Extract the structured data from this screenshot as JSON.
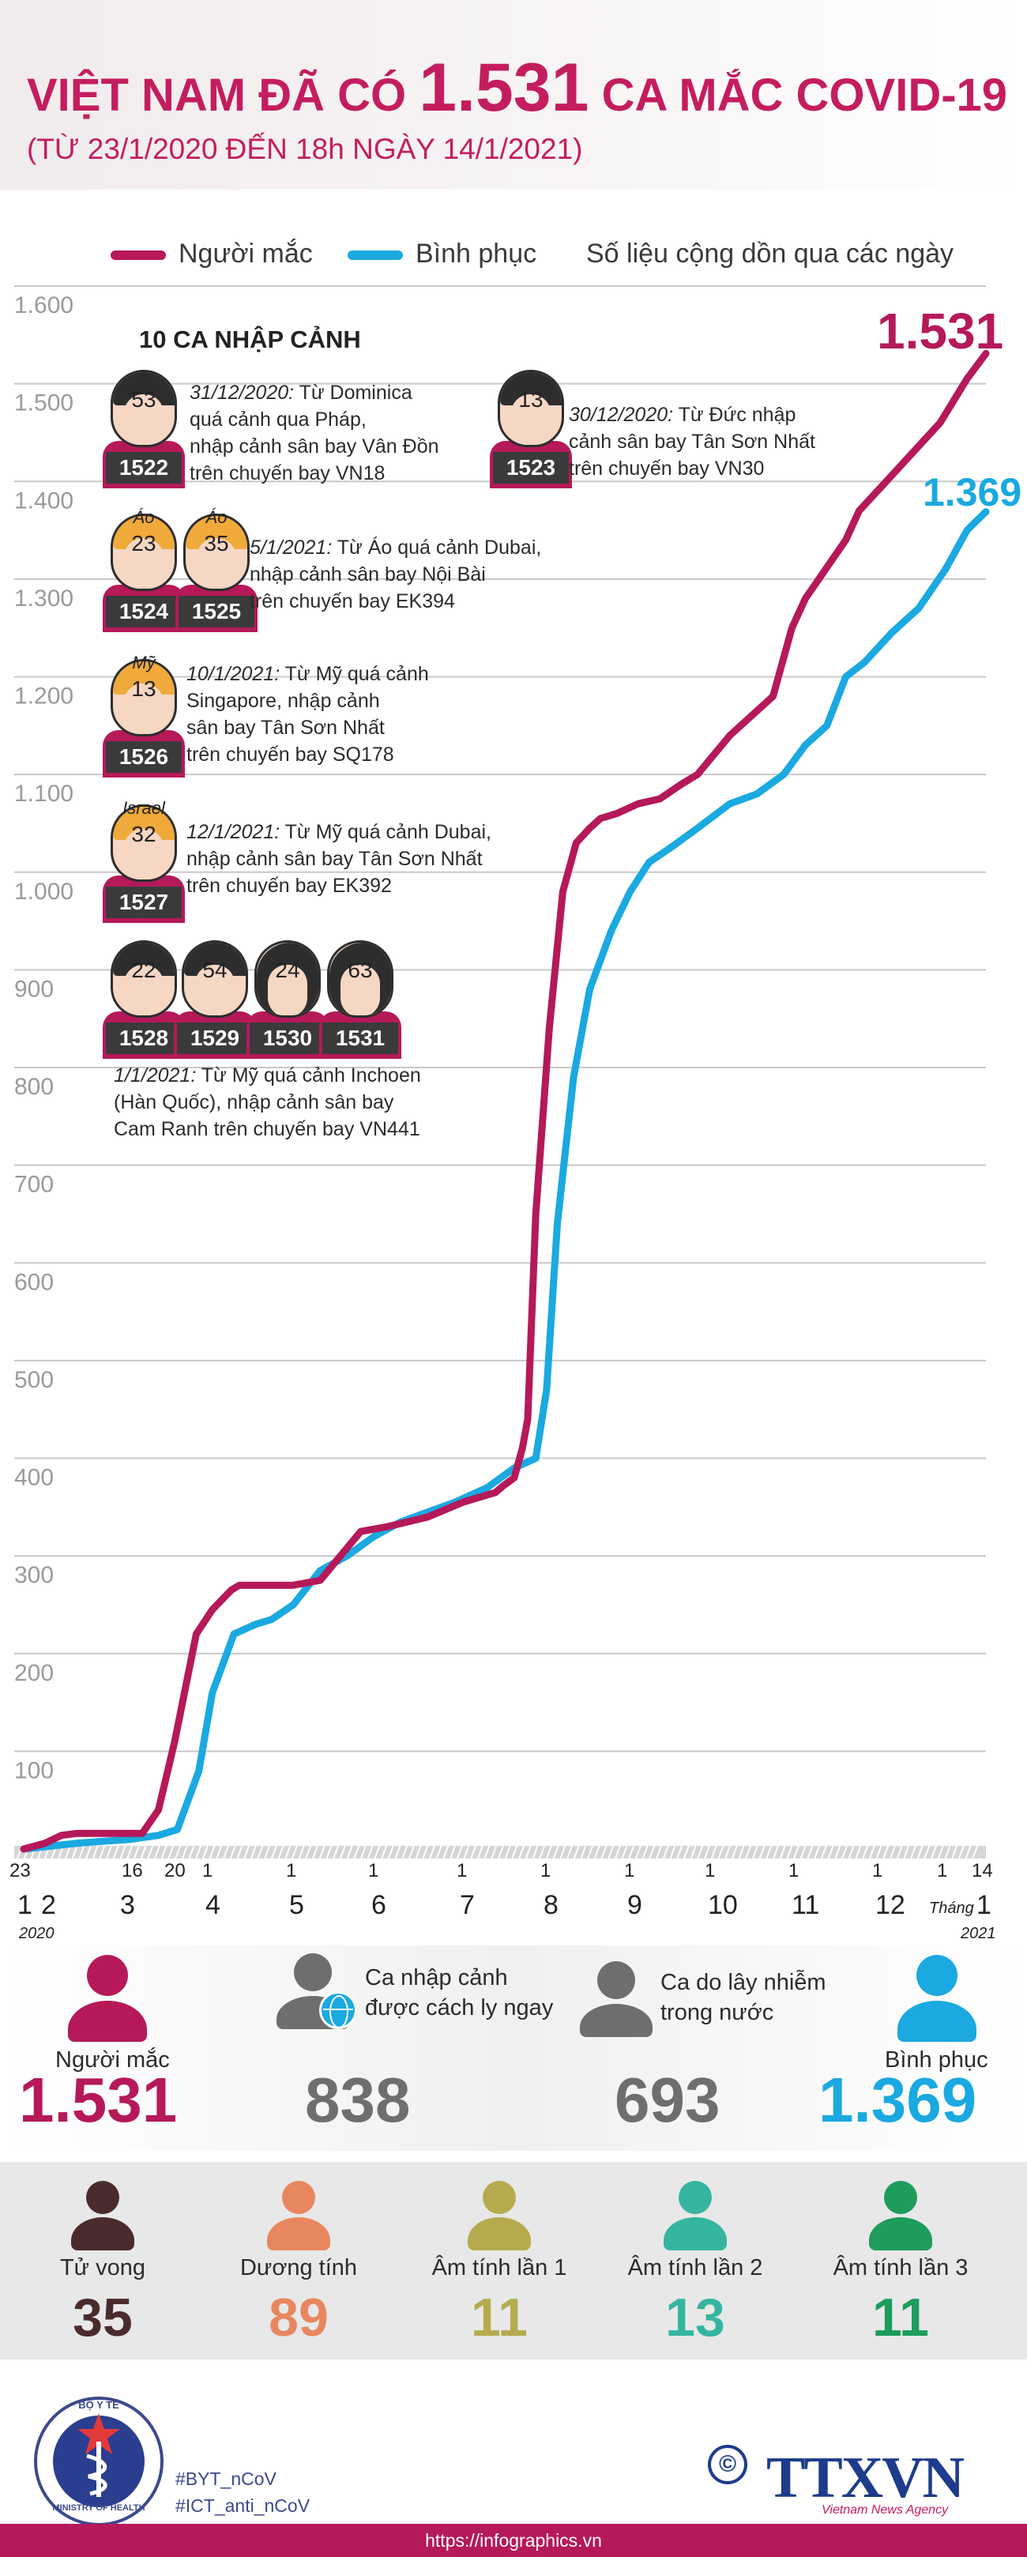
{
  "header": {
    "title_prefix": "VIỆT NAM ĐÃ CÓ",
    "title_number": "1.531",
    "title_suffix": "CA MẮC COVID-19",
    "subtitle": "(TỪ 23/1/2020 ĐẾN 18h NGÀY 14/1/2021)"
  },
  "legend": {
    "infected": "Người mắc",
    "recovered": "Bình phục",
    "note": "Số liệu cộng dồn qua các ngày"
  },
  "colors": {
    "infected": "#b5195a",
    "recovered": "#1aa9e0",
    "deaths": "#4a2b2b",
    "positive": "#e8875f",
    "neg1": "#b5ab4e",
    "neg2": "#35b5a0",
    "neg3": "#1d9c5c",
    "gray": "#6e6e6e"
  },
  "chart_data": {
    "type": "line",
    "title": "Số liệu cộng dồn qua các ngày",
    "ylim": [
      0,
      1600
    ],
    "yticks": [
      "1.600",
      "1.500",
      "1.400",
      "1.300",
      "1.200",
      "1.100",
      "1.000",
      "900",
      "800",
      "700",
      "600",
      "500",
      "400",
      "300",
      "200",
      "100"
    ],
    "x_unit": "day index from 23/1/2020 (0) to 14/1/2021 (357)",
    "xlim": [
      0,
      357
    ],
    "end_labels": {
      "infected": "1.531",
      "recovered": "1.369"
    },
    "series": [
      {
        "name": "Người mắc",
        "color": "#b5195a",
        "x": [
          0,
          8,
          14,
          20,
          30,
          37,
          44,
          50,
          56,
          64,
          70,
          77,
          80,
          84,
          90,
          100,
          110,
          125,
          135,
          150,
          163,
          175,
          178,
          182,
          185,
          187,
          190,
          195,
          200,
          205,
          210,
          214,
          220,
          228,
          236,
          244,
          250,
          262,
          278,
          285,
          290,
          305,
          310,
          320,
          330,
          340,
          350,
          357
        ],
        "y": [
          0,
          6,
          14,
          16,
          16,
          16,
          16,
          40,
          110,
          220,
          245,
          265,
          270,
          270,
          270,
          270,
          275,
          325,
          330,
          340,
          355,
          365,
          372,
          380,
          410,
          440,
          650,
          840,
          980,
          1030,
          1045,
          1055,
          1060,
          1070,
          1075,
          1090,
          1100,
          1140,
          1180,
          1250,
          1280,
          1340,
          1370,
          1400,
          1430,
          1460,
          1505,
          1531
        ]
      },
      {
        "name": "Bình phục",
        "color": "#1aa9e0",
        "x": [
          0,
          20,
          40,
          50,
          57,
          65,
          70,
          78,
          86,
          92,
          100,
          110,
          120,
          130,
          140,
          150,
          160,
          172,
          182,
          190,
          194,
          198,
          204,
          210,
          218,
          225,
          232,
          240,
          250,
          262,
          272,
          282,
          290,
          298,
          305,
          312,
          322,
          332,
          342,
          350,
          357
        ],
        "y": [
          0,
          6,
          10,
          14,
          20,
          80,
          160,
          220,
          230,
          235,
          250,
          285,
          300,
          320,
          335,
          345,
          355,
          370,
          390,
          400,
          470,
          640,
          790,
          880,
          940,
          980,
          1010,
          1025,
          1045,
          1070,
          1080,
          1100,
          1130,
          1150,
          1200,
          1215,
          1245,
          1270,
          1310,
          1350,
          1369
        ]
      }
    ],
    "x_tick_days": [
      {
        "day": "23",
        "month": "1",
        "year": "2020"
      },
      {
        "day": "",
        "month": "2",
        "year": ""
      },
      {
        "day": "16",
        "month": "",
        "year": ""
      },
      {
        "day": "20",
        "month": "3",
        "year": ""
      },
      {
        "day": "1",
        "month": "4",
        "year": ""
      },
      {
        "day": "1",
        "month": "5",
        "year": ""
      },
      {
        "day": "1",
        "month": "6",
        "year": ""
      },
      {
        "day": "1",
        "month": "7",
        "year": ""
      },
      {
        "day": "1",
        "month": "8",
        "year": ""
      },
      {
        "day": "1",
        "month": "9",
        "year": ""
      },
      {
        "day": "1",
        "month": "10",
        "year": ""
      },
      {
        "day": "1",
        "month": "11",
        "year": ""
      },
      {
        "day": "1",
        "month": "12",
        "year": ""
      },
      {
        "day": "1",
        "month": "",
        "year": ""
      },
      {
        "day": "14",
        "month": "1",
        "year": "2021"
      }
    ],
    "month_word": "Tháng"
  },
  "imported": {
    "title": "10 CA NHẬP CẢNH",
    "people": [
      {
        "id": "1522",
        "age": "53",
        "tag": ""
      },
      {
        "id": "1523",
        "age": "13",
        "tag": ""
      },
      {
        "id": "1524",
        "age": "23",
        "tag": "Áo"
      },
      {
        "id": "1525",
        "age": "35",
        "tag": "Áo"
      },
      {
        "id": "1526",
        "age": "13",
        "tag": "Mỹ"
      },
      {
        "id": "1527",
        "age": "32",
        "tag": "Israel"
      },
      {
        "id": "1528",
        "age": "22",
        "tag": ""
      },
      {
        "id": "1529",
        "age": "54",
        "tag": ""
      },
      {
        "id": "1530",
        "age": "24",
        "tag": ""
      },
      {
        "id": "1531",
        "age": "63",
        "tag": ""
      }
    ],
    "notes": [
      {
        "date": "31/12/2020:",
        "text_1": " Từ Dominica",
        "text_2": "quá cảnh qua Pháp,",
        "text_3": "nhập cảnh sân bay Vân Đồn",
        "text_4": "trên chuyến bay VN18"
      },
      {
        "date": "30/12/2020:",
        "text_1": " Từ Đức nhập",
        "text_2": "cảnh sân bay Tân Sơn Nhất",
        "text_3": "trên chuyến bay VN30",
        "text_4": ""
      },
      {
        "date": "5/1/2021:",
        "text_1": " Từ Áo quá cảnh Dubai,",
        "text_2": "nhập cảnh sân bay Nội Bài",
        "text_3": "trên chuyến bay EK394",
        "text_4": ""
      },
      {
        "date": "10/1/2021:",
        "text_1": " Từ Mỹ quá cảnh",
        "text_2": "Singapore, nhập cảnh",
        "text_3": "sân bay Tân Sơn Nhất",
        "text_4": "trên chuyến bay SQ178"
      },
      {
        "date": "12/1/2021:",
        "text_1": " Từ Mỹ quá cảnh Dubai,",
        "text_2": "nhập cảnh sân bay Tân Sơn Nhất",
        "text_3": "trên chuyến bay EK392",
        "text_4": ""
      },
      {
        "date": "1/1/2021:",
        "text_1": " Từ Mỹ quá cảnh Inchoen",
        "text_2": "(Hàn Quốc), nhập cảnh sân bay",
        "text_3": "Cam Ranh trên chuyến bay VN441",
        "text_4": ""
      }
    ]
  },
  "summary": {
    "infected": {
      "label": "Người mắc",
      "value": "1.531"
    },
    "imported": {
      "label_1": "Ca nhập cảnh",
      "label_2": "được cách ly ngay",
      "value": "838"
    },
    "local": {
      "label_1": "Ca do lây nhiễm",
      "label_2": "trong nước",
      "value": "693"
    },
    "recovered": {
      "label": "Bình phục",
      "value": "1.369"
    }
  },
  "outcome": [
    {
      "label": "Tử vong",
      "value": "35"
    },
    {
      "label": "Dương tính",
      "value": "89"
    },
    {
      "label": "Âm tính lần 1",
      "value": "11"
    },
    {
      "label": "Âm tính lần 2",
      "value": "13"
    },
    {
      "label": "Âm tính lần 3",
      "value": "11"
    }
  ],
  "footer": {
    "ministry_text_top": "BỘ Y TẾ",
    "ministry_text_bottom": "MINISTRY OF HEALTH",
    "tag_1": "#BYT_nCoV",
    "tag_2": "#ICT_anti_nCoV",
    "copyright": "©",
    "brand": "TTXVN",
    "brand_sub": "Vietnam News Agency",
    "url": "https://infographics.vn"
  }
}
